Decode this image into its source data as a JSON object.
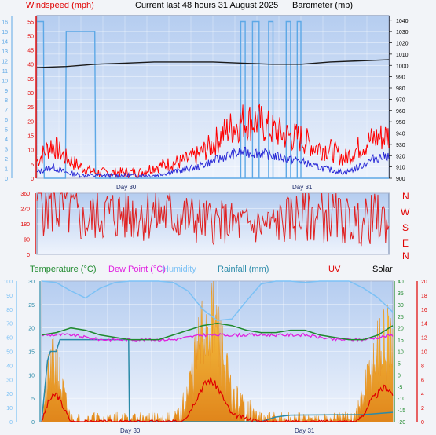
{
  "header": {
    "windspeed": "Windspeed (mph)",
    "title": "Current last 48 hours 31 August 2025",
    "barometer": "Barometer (mb)"
  },
  "day_labels": [
    "Day 30",
    "Day 31"
  ],
  "colors": {
    "wind_gust": "#ff0000",
    "wind_avg": "#2b2bd6",
    "rain_axis": "#5da8e6",
    "barometer": "#1a1a1a",
    "temperature": "#1f8a2e",
    "dew_point": "#e020e0",
    "humidity": "#7cc1f5",
    "rainfall": "#2a8aa8",
    "uv": "#e00000",
    "solar": "#f0a020",
    "plot_bg_top": "#b7cef0",
    "plot_bg_bottom": "#e8f0fc"
  },
  "bottom_legend": {
    "temperature": "Temperature (°C)",
    "dew_point": "Dew Point (°C)",
    "humidity": "Humidity",
    "rainfall": "Rainfall (mm)",
    "uv": "UV",
    "solar": "Solar"
  },
  "compass": [
    "N",
    "W",
    "S",
    "E",
    "N"
  ],
  "chart_data": [
    {
      "type": "line",
      "name": "wind-barometer",
      "x_range_hours": [
        0,
        48
      ],
      "y_left": {
        "ticks": [
          0,
          5,
          10,
          15,
          20,
          25,
          30,
          35,
          40,
          45,
          50,
          55
        ],
        "ylim": [
          0,
          57
        ]
      },
      "y_far_left": {
        "ticks": [
          0,
          1,
          2,
          3,
          4,
          5,
          6,
          7,
          8,
          9,
          10,
          11,
          12,
          13,
          14,
          15,
          16
        ],
        "ylim": [
          0,
          16.6
        ]
      },
      "y_right": {
        "ticks": [
          900,
          910,
          920,
          930,
          940,
          950,
          960,
          970,
          980,
          990,
          1000,
          1010,
          1020,
          1030,
          1040
        ],
        "ylim": [
          900,
          1044
        ]
      },
      "series": [
        {
          "name": "Wind gust",
          "x": [
            0,
            2,
            4,
            6,
            8,
            10,
            12,
            14,
            16,
            18,
            20,
            22,
            24,
            26,
            28,
            30,
            32,
            34,
            36,
            38,
            40,
            42,
            44,
            46,
            48
          ],
          "values": [
            6,
            12,
            7,
            4,
            2,
            2,
            2,
            2,
            4,
            5,
            6,
            8,
            12,
            17,
            20,
            20,
            17,
            15,
            14,
            11,
            10,
            7,
            11,
            14,
            15
          ]
        },
        {
          "name": "Wind average",
          "x": [
            0,
            2,
            4,
            6,
            8,
            10,
            12,
            14,
            16,
            18,
            20,
            22,
            24,
            26,
            28,
            30,
            32,
            34,
            36,
            38,
            40,
            42,
            44,
            46,
            48
          ],
          "values": [
            2,
            4,
            2,
            1,
            1,
            1,
            1,
            1,
            1,
            2,
            3,
            4,
            6,
            8,
            9,
            9,
            8,
            7,
            6,
            4,
            3,
            2,
            4,
            7,
            8
          ]
        },
        {
          "name": "Barometer",
          "x": [
            0,
            4,
            8,
            12,
            16,
            20,
            24,
            28,
            32,
            36,
            40,
            44,
            48
          ],
          "values": [
            998,
            999,
            1001,
            1002,
            1003,
            1003,
            1003,
            1002,
            1001,
            1001,
            1003,
            1004,
            1005
          ]
        },
        {
          "name": "Rain rate",
          "x": [
            0,
            0.9,
            1.0,
            3.9,
            4.0,
            7.9,
            8.0,
            9.5,
            9.6,
            18.0,
            18.2,
            20.0,
            44.0,
            48.0
          ],
          "values": [
            16,
            16,
            0,
            0,
            15,
            15,
            0,
            0,
            0,
            0,
            0,
            0,
            0,
            0
          ]
        }
      ]
    },
    {
      "type": "line",
      "name": "wind-direction",
      "x_range_hours": [
        0,
        48
      ],
      "y": {
        "ticks": [
          0,
          90,
          180,
          270,
          360
        ],
        "ylim": [
          0,
          360
        ]
      },
      "series": [
        {
          "name": "Wind direction",
          "x": [
            0,
            1,
            2,
            3,
            4,
            5,
            6,
            7,
            8,
            10,
            12,
            14,
            16,
            18,
            20,
            22,
            24,
            26,
            28,
            30,
            32,
            34,
            36,
            38,
            40,
            42,
            44,
            46,
            48
          ],
          "values": [
            360,
            330,
            320,
            280,
            270,
            250,
            190,
            190,
            240,
            240,
            235,
            245,
            240,
            235,
            220,
            200,
            190,
            185,
            175,
            170,
            175,
            200,
            235,
            230,
            225,
            205,
            180,
            215,
            195
          ]
        }
      ]
    },
    {
      "type": "line",
      "name": "temperature-humidity-solar",
      "x_range_hours": [
        0,
        48
      ],
      "y_left_outer": {
        "ticks": [
          0,
          10,
          20,
          30,
          40,
          50,
          60,
          70,
          80,
          90,
          100
        ],
        "ylim": [
          0,
          100
        ]
      },
      "y_left_inner": {
        "ticks": [
          0,
          5,
          10,
          15,
          20,
          25,
          30
        ],
        "ylim": [
          0,
          30
        ]
      },
      "y_right_inner": {
        "ticks": [
          -20,
          -15,
          -10,
          -5,
          0,
          5,
          10,
          15,
          20,
          25,
          30,
          35,
          40
        ],
        "ylim": [
          -20,
          40
        ]
      },
      "y_right_outer": {
        "ticks": [
          0,
          2,
          4,
          6,
          8,
          10,
          12,
          14,
          16,
          18,
          20
        ],
        "ylim": [
          0,
          20
        ]
      },
      "series": [
        {
          "name": "Temperature",
          "x": [
            0,
            2,
            4,
            6,
            8,
            10,
            12,
            14,
            16,
            18,
            20,
            22,
            24,
            26,
            28,
            30,
            32,
            34,
            36,
            38,
            40,
            42,
            44,
            46,
            48
          ],
          "values": [
            17,
            18,
            20,
            19,
            17,
            16,
            15,
            15,
            15,
            17,
            19,
            21,
            22,
            21,
            19,
            18,
            18,
            19,
            19,
            17,
            16,
            15,
            15,
            17,
            21
          ]
        },
        {
          "name": "Dew Point",
          "x": [
            0,
            2,
            4,
            6,
            8,
            10,
            12,
            14,
            16,
            18,
            20,
            22,
            24,
            26,
            28,
            30,
            32,
            34,
            36,
            38,
            40,
            42,
            44,
            46,
            48
          ],
          "values": [
            17,
            17,
            17,
            16,
            15,
            15,
            15,
            15,
            15,
            15,
            16,
            17,
            17,
            17,
            17,
            17,
            17,
            17,
            17,
            16,
            15,
            15,
            15,
            16,
            17
          ]
        },
        {
          "name": "Humidity",
          "x": [
            0,
            2,
            4,
            6,
            8,
            10,
            12,
            14,
            16,
            18,
            20,
            22,
            24,
            26,
            28,
            30,
            32,
            34,
            36,
            38,
            40,
            42,
            44,
            46,
            48
          ],
          "values": [
            100,
            99,
            93,
            88,
            95,
            99,
            100,
            100,
            100,
            99,
            93,
            80,
            72,
            73,
            86,
            98,
            100,
            100,
            99,
            100,
            100,
            100,
            95,
            88,
            78
          ]
        },
        {
          "name": "Rainfall",
          "x": [
            0,
            0.8,
            1.2,
            2.0,
            2.5,
            10.0,
            10.2,
            11.9,
            12.0,
            30.0,
            32.0,
            34.0,
            44.0,
            48.0
          ],
          "values": [
            0,
            13,
            15,
            15,
            17.5,
            17.5,
            17.5,
            17.5,
            0,
            0,
            1,
            1.4,
            1.5,
            2
          ]
        },
        {
          "name": "UV",
          "x": [
            0,
            1,
            2,
            3,
            4,
            5,
            6,
            7,
            8,
            16,
            17,
            18,
            19,
            20,
            21,
            22,
            23,
            24,
            25,
            26,
            30,
            40,
            41,
            42,
            43,
            44,
            45,
            46,
            47,
            48
          ],
          "values": [
            0,
            3,
            4,
            2,
            0,
            0,
            0,
            0,
            0,
            0,
            0,
            0,
            0,
            1,
            3,
            5,
            6,
            5,
            3,
            1,
            0,
            0,
            0,
            0,
            0,
            1,
            3,
            4,
            5,
            4
          ]
        },
        {
          "name": "Solar",
          "x": [
            0,
            1,
            2,
            3,
            4,
            5,
            6,
            7,
            8,
            16,
            17,
            18,
            19,
            20,
            21,
            22,
            23,
            24,
            25,
            26,
            30,
            40,
            41,
            42,
            43,
            44,
            45,
            46,
            47,
            48
          ],
          "values": [
            0,
            8,
            10,
            4,
            0,
            0,
            0,
            0,
            0,
            0,
            0,
            0,
            1,
            5,
            11,
            15,
            18,
            15,
            10,
            4,
            0,
            0,
            0,
            0,
            1,
            4,
            9,
            12,
            14,
            11
          ]
        }
      ]
    }
  ]
}
